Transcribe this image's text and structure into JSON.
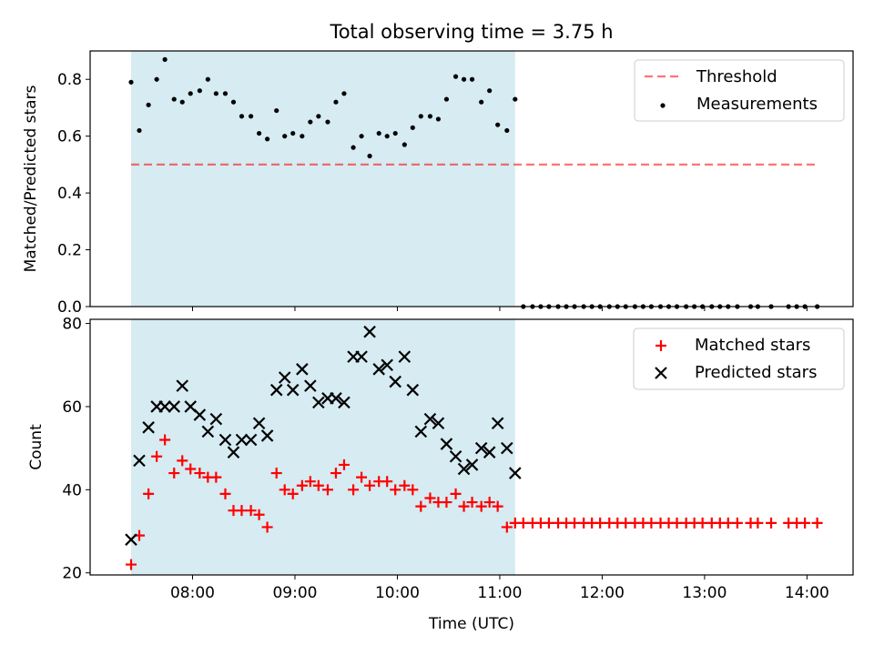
{
  "title": "Total observing time = 3.75 h",
  "colors": {
    "observing_span": "#add8e6",
    "threshold": "#ff0000",
    "measurements": "#000000",
    "matched": "#ff0000",
    "predicted": "#000000"
  },
  "chart_data": [
    {
      "type": "scatter",
      "ylabel": "Matched/Predicted stars",
      "ylim": [
        0,
        0.9
      ],
      "yticks": [
        "0.0",
        "0.2",
        "0.4",
        "0.6",
        "0.8"
      ],
      "x_unit": "hours UTC",
      "shaded_span_x": [
        7.4,
        11.15
      ],
      "legend_position": "top-right",
      "threshold": {
        "name": "Threshold",
        "y": 0.5,
        "x_range": [
          7.4,
          14.1
        ]
      },
      "series": [
        {
          "name": "Measurements",
          "marker": "dot",
          "x": [
            7.4,
            7.48,
            7.57,
            7.65,
            7.73,
            7.82,
            7.9,
            7.98,
            8.07,
            8.15,
            8.23,
            8.32,
            8.4,
            8.48,
            8.57,
            8.65,
            8.73,
            8.82,
            8.9,
            8.98,
            9.07,
            9.15,
            9.23,
            9.32,
            9.4,
            9.48,
            9.57,
            9.65,
            9.73,
            9.82,
            9.9,
            9.98,
            10.07,
            10.15,
            10.23,
            10.32,
            10.4,
            10.48,
            10.57,
            10.65,
            10.73,
            10.82,
            10.9,
            10.98,
            11.07,
            11.15,
            11.23,
            11.32,
            11.4,
            11.48,
            11.57,
            11.65,
            11.73,
            11.82,
            11.9,
            11.98,
            12.07,
            12.15,
            12.23,
            12.32,
            12.4,
            12.48,
            12.57,
            12.65,
            12.73,
            12.82,
            12.9,
            12.98,
            13.07,
            13.15,
            13.23,
            13.32,
            13.45,
            13.52,
            13.65,
            13.82,
            13.9,
            13.98,
            14.1
          ],
          "y": [
            0.79,
            0.62,
            0.71,
            0.8,
            0.87,
            0.73,
            0.72,
            0.75,
            0.76,
            0.8,
            0.75,
            0.75,
            0.72,
            0.67,
            0.67,
            0.61,
            0.59,
            0.69,
            0.6,
            0.61,
            0.6,
            0.65,
            0.67,
            0.65,
            0.72,
            0.75,
            0.56,
            0.6,
            0.53,
            0.61,
            0.6,
            0.61,
            0.57,
            0.63,
            0.67,
            0.67,
            0.66,
            0.73,
            0.81,
            0.8,
            0.8,
            0.72,
            0.76,
            0.64,
            0.62,
            0.73,
            0,
            0,
            0,
            0,
            0,
            0,
            0,
            0,
            0,
            0,
            0,
            0,
            0,
            0,
            0,
            0,
            0,
            0,
            0,
            0,
            0,
            0,
            0,
            0,
            0,
            0,
            0,
            0,
            0,
            0,
            0,
            0,
            0
          ]
        }
      ]
    },
    {
      "type": "scatter",
      "xlabel": "Time (UTC)",
      "ylabel": "Count",
      "ylim": [
        19.5,
        81
      ],
      "yticks": [
        "20",
        "40",
        "60",
        "80"
      ],
      "x_unit": "hours UTC",
      "xlim": [
        7.0,
        14.45
      ],
      "xticks": [
        {
          "value": 8,
          "label": "08:00"
        },
        {
          "value": 9,
          "label": "09:00"
        },
        {
          "value": 10,
          "label": "10:00"
        },
        {
          "value": 11,
          "label": "11:00"
        },
        {
          "value": 12,
          "label": "12:00"
        },
        {
          "value": 13,
          "label": "13:00"
        },
        {
          "value": 14,
          "label": "14:00"
        }
      ],
      "shaded_span_x": [
        7.4,
        11.15
      ],
      "legend_position": "top-right",
      "series": [
        {
          "name": "Matched stars",
          "marker": "plus",
          "x": [
            7.4,
            7.48,
            7.57,
            7.65,
            7.73,
            7.82,
            7.9,
            7.98,
            8.07,
            8.15,
            8.23,
            8.32,
            8.4,
            8.48,
            8.57,
            8.65,
            8.73,
            8.82,
            8.9,
            8.98,
            9.07,
            9.15,
            9.23,
            9.32,
            9.4,
            9.48,
            9.57,
            9.65,
            9.73,
            9.82,
            9.9,
            9.98,
            10.07,
            10.15,
            10.23,
            10.32,
            10.4,
            10.48,
            10.57,
            10.65,
            10.73,
            10.82,
            10.9,
            10.98,
            11.07,
            11.15,
            11.23,
            11.32,
            11.4,
            11.48,
            11.57,
            11.65,
            11.73,
            11.82,
            11.9,
            11.98,
            12.07,
            12.15,
            12.23,
            12.32,
            12.4,
            12.48,
            12.57,
            12.65,
            12.73,
            12.82,
            12.9,
            12.98,
            13.07,
            13.15,
            13.23,
            13.32,
            13.45,
            13.52,
            13.65,
            13.82,
            13.9,
            13.98,
            14.1
          ],
          "y": [
            22,
            29,
            39,
            48,
            52,
            44,
            47,
            45,
            44,
            43,
            43,
            39,
            35,
            35,
            35,
            34,
            31,
            44,
            40,
            39,
            41,
            42,
            41,
            40,
            44,
            46,
            40,
            43,
            41,
            42,
            42,
            40,
            41,
            40,
            36,
            38,
            37,
            37,
            39,
            36,
            37,
            36,
            37,
            36,
            31,
            32,
            32,
            32,
            32,
            32,
            32,
            32,
            32,
            32,
            32,
            32,
            32,
            32,
            32,
            32,
            32,
            32,
            32,
            32,
            32,
            32,
            32,
            32,
            32,
            32,
            32,
            32,
            32,
            32,
            32,
            32,
            32,
            32,
            32
          ]
        },
        {
          "name": "Predicted stars",
          "marker": "x",
          "x": [
            7.4,
            7.48,
            7.57,
            7.65,
            7.73,
            7.82,
            7.9,
            7.98,
            8.07,
            8.15,
            8.23,
            8.32,
            8.4,
            8.48,
            8.57,
            8.65,
            8.73,
            8.82,
            8.9,
            8.98,
            9.07,
            9.15,
            9.23,
            9.32,
            9.4,
            9.48,
            9.57,
            9.65,
            9.73,
            9.82,
            9.9,
            9.98,
            10.07,
            10.15,
            10.23,
            10.32,
            10.4,
            10.48,
            10.57,
            10.65,
            10.73,
            10.82,
            10.9,
            10.98,
            11.07,
            11.15
          ],
          "y": [
            28,
            47,
            55,
            60,
            60,
            60,
            65,
            60,
            58,
            54,
            57,
            52,
            49,
            52,
            52,
            56,
            53,
            64,
            67,
            64,
            69,
            65,
            61,
            62,
            62,
            61,
            72,
            72,
            78,
            69,
            70,
            66,
            72,
            64,
            54,
            57,
            56,
            51,
            48,
            45,
            46,
            50,
            49,
            56,
            50,
            44
          ]
        }
      ]
    }
  ]
}
